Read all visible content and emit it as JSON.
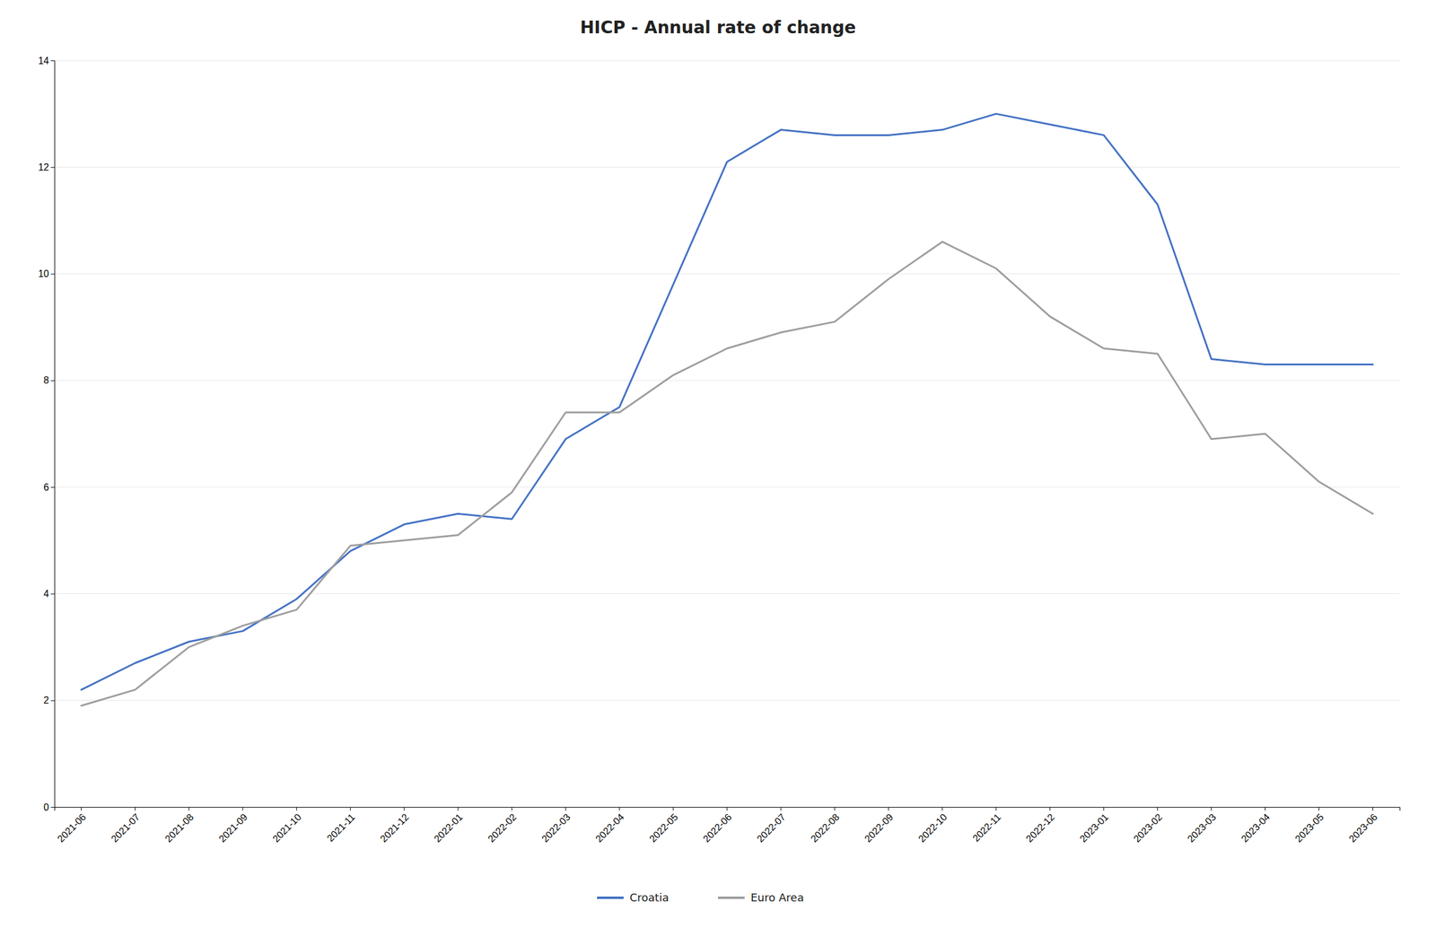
{
  "chart_data": {
    "type": "line",
    "title": "HICP - Annual rate of change",
    "categories": [
      "2021-06",
      "2021-07",
      "2021-08",
      "2021-09",
      "2021-10",
      "2021-11",
      "2021-12",
      "2022-01",
      "2022-02",
      "2022-03",
      "2022-04",
      "2022-05",
      "2022-06",
      "2022-07",
      "2022-08",
      "2022-09",
      "2022-10",
      "2022-11",
      "2022-12",
      "2023-01",
      "2023-02",
      "2023-03",
      "2023-04",
      "2023-05",
      "2023-06"
    ],
    "series": [
      {
        "name": "Croatia",
        "color": "#4472C4",
        "values": [
          2.2,
          2.7,
          3.1,
          3.3,
          3.9,
          4.8,
          5.3,
          5.5,
          5.4,
          6.9,
          7.5,
          9.8,
          12.1,
          12.7,
          12.6,
          12.6,
          12.7,
          13.0,
          12.8,
          12.6,
          11.3,
          8.4,
          8.3,
          8.3,
          8.3
        ]
      },
      {
        "name": "Euro Area",
        "color": "#9E9E9E",
        "values": [
          1.9,
          2.2,
          3.0,
          3.4,
          3.7,
          4.9,
          5.0,
          5.1,
          5.9,
          7.4,
          7.4,
          8.1,
          8.6,
          8.9,
          9.1,
          9.9,
          10.6,
          10.1,
          9.2,
          8.6,
          8.5,
          6.9,
          7.0,
          6.1,
          5.5
        ]
      }
    ],
    "ylim": [
      0,
      14
    ],
    "yticks": [
      0,
      2,
      4,
      6,
      8,
      10,
      12,
      14
    ],
    "grid": true,
    "legend": "bottom"
  }
}
